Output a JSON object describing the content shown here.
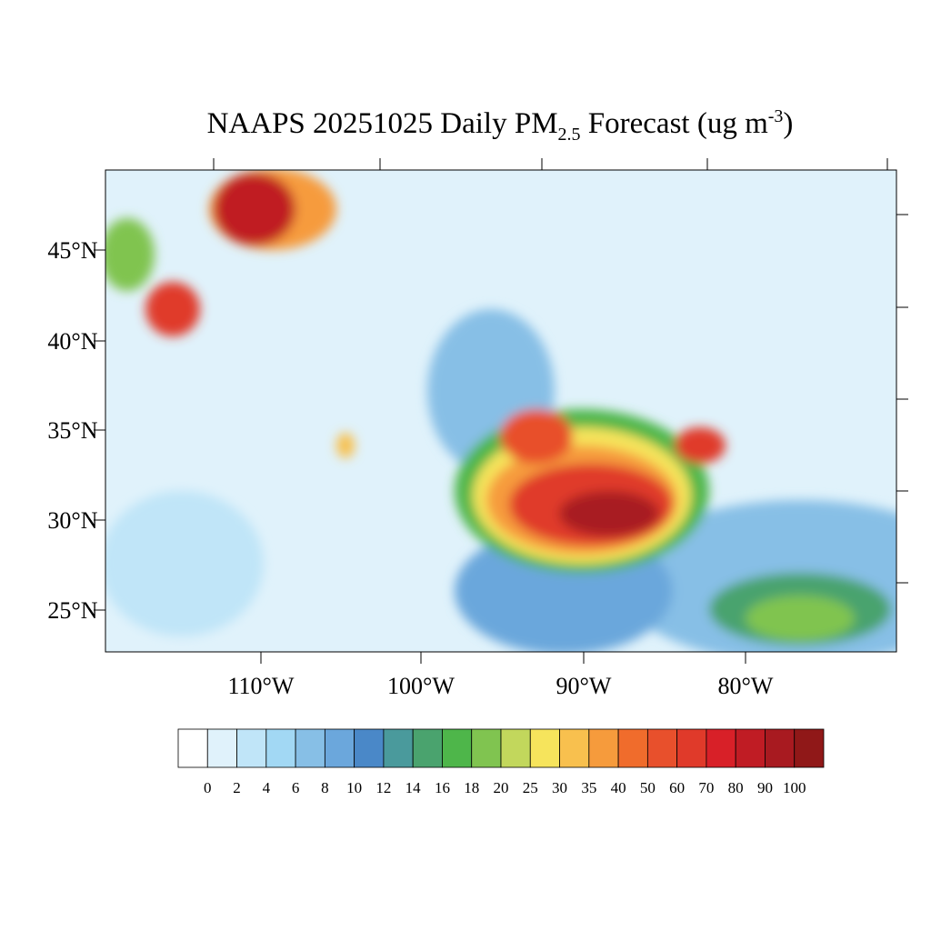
{
  "title": {
    "prefix": "NAAPS 20251025 Daily PM",
    "subscript": "2.5",
    "middle": " Forecast (ug m",
    "superscript": "-3",
    "suffix": ")"
  },
  "map": {
    "lat_labels": [
      "45°N",
      "40°N",
      "35°N",
      "30°N",
      "25°N"
    ],
    "lon_labels": [
      "110°W",
      "100°W",
      "90°W",
      "80°W"
    ]
  },
  "colorbar": {
    "colors": [
      "#ffffff",
      "#e0f2fb",
      "#c0e5f8",
      "#a2d8f4",
      "#87bfe6",
      "#6ba7dc",
      "#4a88c8",
      "#4a9a9c",
      "#4aa36e",
      "#4eb64a",
      "#80c450",
      "#c2d75c",
      "#f6e45c",
      "#f8c04e",
      "#f69b3c",
      "#f06c2c",
      "#e8502c",
      "#e03a2a",
      "#d82028",
      "#c01c24",
      "#a81a20",
      "#901818"
    ],
    "labels": [
      "0",
      "2",
      "4",
      "6",
      "8",
      "10",
      "12",
      "14",
      "16",
      "18",
      "20",
      "25",
      "30",
      "35",
      "40",
      "50",
      "60",
      "70",
      "80",
      "90",
      "100"
    ]
  }
}
